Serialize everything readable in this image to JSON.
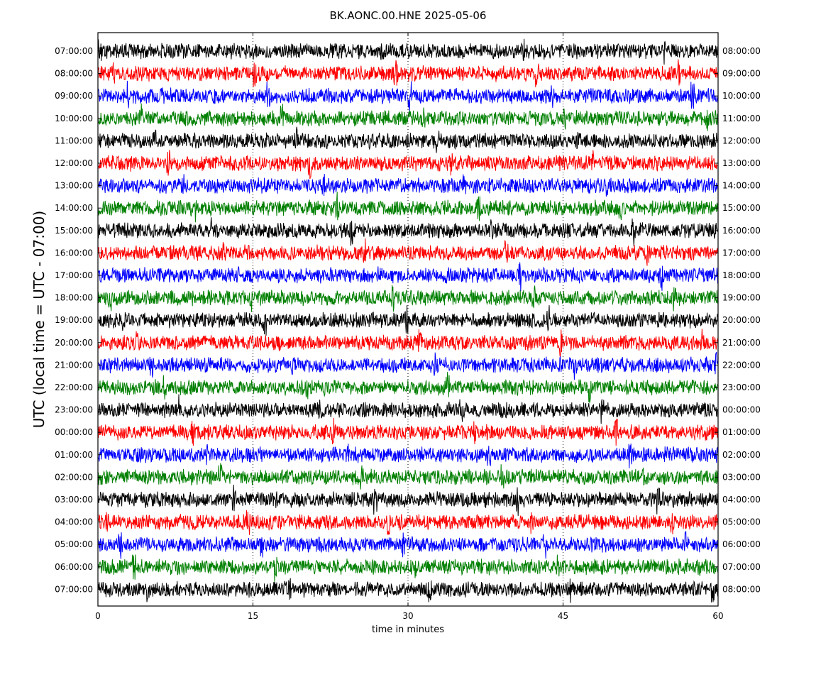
{
  "chart_data": {
    "type": "line",
    "title": "BK.AONC.00.HNE 2025-05-06",
    "xlabel": "time in minutes",
    "ylabel": "UTC (local time = UTC - 07:00)",
    "xlim": [
      0,
      60
    ],
    "x_ticks": [
      0,
      15,
      30,
      45,
      60
    ],
    "x_tick_labels": [
      "0",
      "15",
      "30",
      "45",
      "60"
    ],
    "left_tick_labels": [
      "07:00:00",
      "08:00:00",
      "09:00:00",
      "10:00:00",
      "11:00:00",
      "12:00:00",
      "13:00:00",
      "14:00:00",
      "15:00:00",
      "16:00:00",
      "17:00:00",
      "18:00:00",
      "19:00:00",
      "20:00:00",
      "21:00:00",
      "22:00:00",
      "23:00:00",
      "00:00:00",
      "01:00:00",
      "02:00:00",
      "03:00:00",
      "04:00:00",
      "05:00:00",
      "06:00:00",
      "07:00:00"
    ],
    "right_tick_labels": [
      "08:00:00",
      "09:00:00",
      "10:00:00",
      "11:00:00",
      "12:00:00",
      "13:00:00",
      "14:00:00",
      "15:00:00",
      "16:00:00",
      "17:00:00",
      "18:00:00",
      "19:00:00",
      "20:00:00",
      "21:00:00",
      "22:00:00",
      "23:00:00",
      "00:00:00",
      "01:00:00",
      "02:00:00",
      "03:00:00",
      "04:00:00",
      "05:00:00",
      "06:00:00",
      "07:00:00",
      "08:00:00"
    ],
    "trace_colors": [
      "#000000",
      "#ff0000",
      "#0000ff",
      "#008000"
    ],
    "grid_minutes": [
      15,
      30,
      45
    ],
    "grid": "dotted vertical at 15, 30, 45"
  }
}
